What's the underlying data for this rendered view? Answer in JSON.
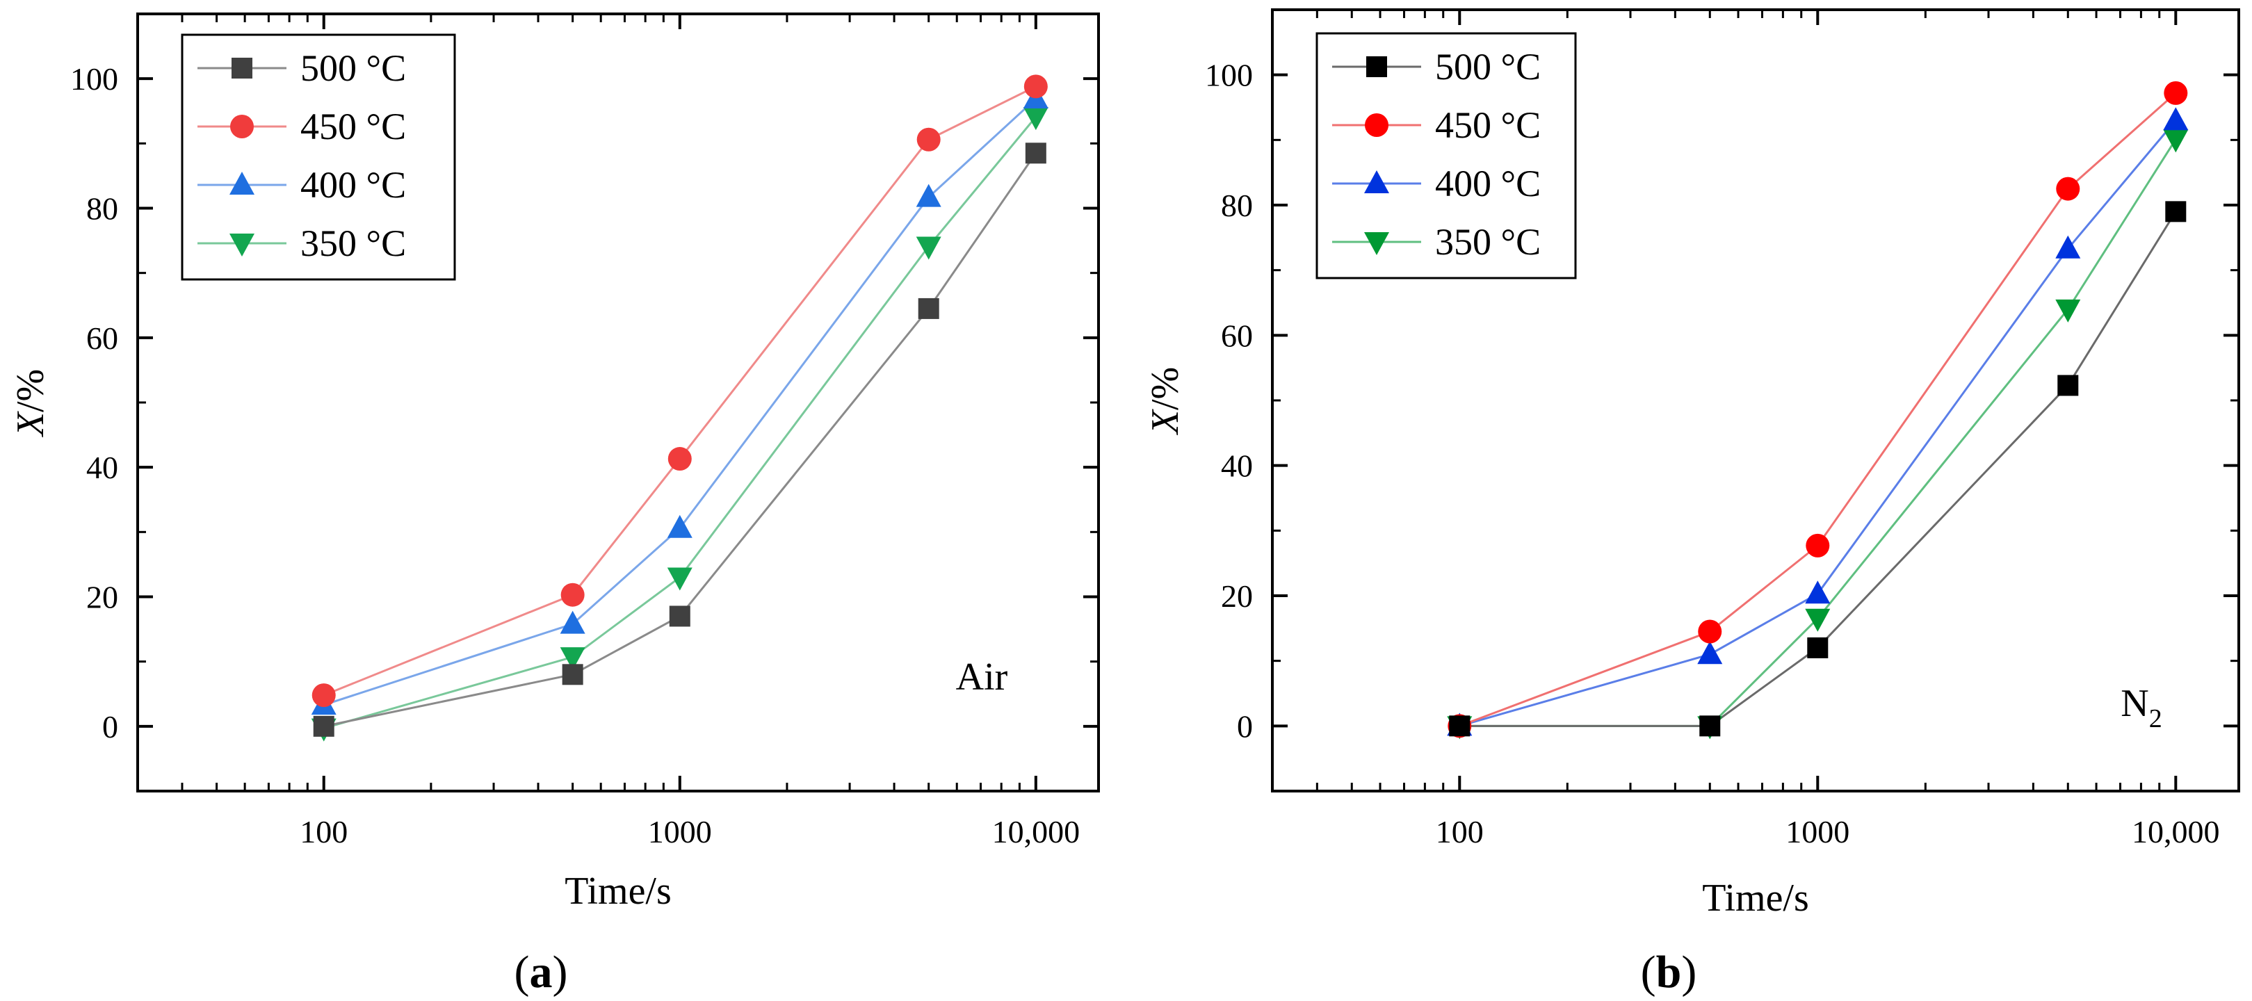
{
  "chart_data": [
    {
      "type": "line",
      "panel_label": "a",
      "annotation": "Air",
      "xlabel": "Time/s",
      "ylabel_italic": "X",
      "ylabel_rest": "/%",
      "xscale": "log",
      "xlim": [
        30,
        15000
      ],
      "ylim": [
        -10,
        110
      ],
      "xticks": [
        100,
        1000,
        10000
      ],
      "xtick_labels": [
        "100",
        "1000",
        "10,000"
      ],
      "yticks": [
        0,
        20,
        40,
        60,
        80,
        100
      ],
      "ytick_labels": [
        "0",
        "20",
        "40",
        "60",
        "80",
        "100"
      ],
      "legend_position": "top-left",
      "x": [
        100,
        500,
        1000,
        5000,
        10000
      ],
      "series": [
        {
          "name": "500 °C",
          "color": "#404040",
          "line_color": "#8a8a8a",
          "marker": "square",
          "values": [
            0,
            8,
            17,
            64.5,
            88.5
          ]
        },
        {
          "name": "450 °C",
          "color": "#f03c3c",
          "line_color": "#f08a8a",
          "marker": "circle",
          "values": [
            4.8,
            20.3,
            41.3,
            90.6,
            98.8
          ]
        },
        {
          "name": "400 °C",
          "color": "#1f6fe0",
          "line_color": "#7aa6ea",
          "marker": "triangle-up",
          "values": [
            3.3,
            15.8,
            30.6,
            81.7,
            96.9
          ]
        },
        {
          "name": "350 °C",
          "color": "#13a650",
          "line_color": "#79c89a",
          "marker": "triangle-down",
          "values": [
            -0.3,
            10.7,
            23,
            74.1,
            94.1
          ]
        }
      ]
    },
    {
      "type": "line",
      "panel_label": "b",
      "annotation": "N",
      "annotation_sub": "2",
      "xlabel": "Time/s",
      "ylabel_italic": "X",
      "ylabel_rest": "/%",
      "xscale": "log",
      "xlim": [
        30,
        15000
      ],
      "ylim": [
        -10,
        110
      ],
      "xticks": [
        100,
        1000,
        10000
      ],
      "xtick_labels": [
        "100",
        "1000",
        "10,000"
      ],
      "yticks": [
        0,
        20,
        40,
        60,
        80,
        100
      ],
      "ytick_labels": [
        "0",
        "20",
        "40",
        "60",
        "80",
        "100"
      ],
      "legend_position": "top-left",
      "x": [
        100,
        500,
        1000,
        5000,
        10000
      ],
      "series": [
        {
          "name": "500 °C",
          "color": "#000000",
          "line_color": "#6a6a6a",
          "marker": "square",
          "values": [
            0,
            0,
            12,
            52.3,
            79
          ]
        },
        {
          "name": "450 °C",
          "color": "#ff0000",
          "line_color": "#f07070",
          "marker": "circle",
          "values": [
            0,
            14.5,
            27.7,
            82.5,
            97.2
          ]
        },
        {
          "name": "400 °C",
          "color": "#0033dd",
          "line_color": "#5a7ee8",
          "marker": "triangle-up",
          "values": [
            0,
            11,
            20.3,
            73.3,
            93
          ]
        },
        {
          "name": "350 °C",
          "color": "#009933",
          "line_color": "#5fbf80",
          "marker": "triangle-down",
          "values": [
            0,
            0,
            16.5,
            64,
            90.1
          ]
        }
      ]
    }
  ]
}
